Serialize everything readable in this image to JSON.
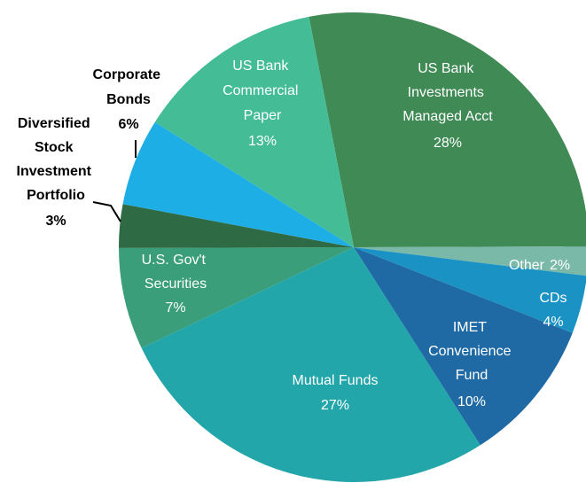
{
  "chart_data": {
    "type": "pie",
    "categories": [
      "US Bank Investments Managed Acct",
      "Other",
      "CDs",
      "IMET Convenience Fund",
      "Mutual Funds",
      "U.S. Gov't Securities",
      "Diversified Stock Investment Portfolio",
      "Corporate Bonds",
      "US Bank Commercial Paper"
    ],
    "values": [
      28,
      2,
      4,
      10,
      27,
      7,
      3,
      6,
      13
    ],
    "value_labels": [
      "28%",
      "2%",
      "4%",
      "10%",
      "27%",
      "7%",
      "3%",
      "6%",
      "13%"
    ],
    "colors": [
      "#3f8a55",
      "#7ab8a8",
      "#1a93c4",
      "#1f6aa5",
      "#23a6aa",
      "#3a9e7a",
      "#2e6b45",
      "#1eaee6",
      "#44bd96"
    ]
  }
}
